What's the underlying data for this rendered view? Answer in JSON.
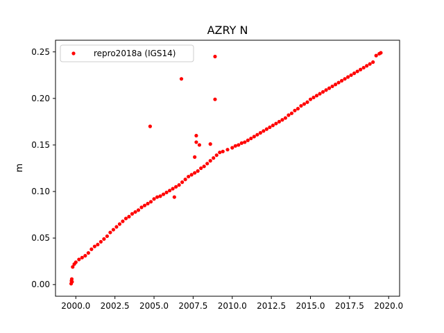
{
  "chart_data": {
    "type": "scatter",
    "title": "AZRY N",
    "xlabel": "",
    "ylabel": "m",
    "xlim": [
      1998.7,
      2020.7
    ],
    "ylim": [
      -0.0125,
      0.2625
    ],
    "xticks": [
      2000.0,
      2002.5,
      2005.0,
      2007.5,
      2010.0,
      2012.5,
      2015.0,
      2017.5,
      2020.0
    ],
    "xtick_labels": [
      "2000.0",
      "2002.5",
      "2005.0",
      "2007.5",
      "2010.0",
      "2012.5",
      "2015.0",
      "2017.5",
      "2020.0"
    ],
    "yticks": [
      0.0,
      0.05,
      0.1,
      0.15,
      0.2,
      0.25
    ],
    "ytick_labels": [
      "0.00",
      "0.05",
      "0.10",
      "0.15",
      "0.20",
      "0.25"
    ],
    "grid": false,
    "legend_position": "upper-left",
    "series": [
      {
        "name": "repro2018a (IGS14)",
        "color": "#ff0000",
        "marker": "circle",
        "points": [
          [
            1999.7,
            0.001
          ],
          [
            1999.72,
            0.004
          ],
          [
            1999.74,
            0.006
          ],
          [
            1999.76,
            0.003
          ],
          [
            1999.8,
            0.019
          ],
          [
            1999.9,
            0.022
          ],
          [
            2000.0,
            0.024
          ],
          [
            2000.2,
            0.027
          ],
          [
            2000.4,
            0.029
          ],
          [
            2000.6,
            0.031
          ],
          [
            2000.8,
            0.034
          ],
          [
            2001.0,
            0.038
          ],
          [
            2001.2,
            0.041
          ],
          [
            2001.4,
            0.043
          ],
          [
            2001.6,
            0.046
          ],
          [
            2001.8,
            0.049
          ],
          [
            2002.0,
            0.052
          ],
          [
            2002.2,
            0.056
          ],
          [
            2002.4,
            0.059
          ],
          [
            2002.6,
            0.062
          ],
          [
            2002.8,
            0.065
          ],
          [
            2003.0,
            0.068
          ],
          [
            2003.2,
            0.071
          ],
          [
            2003.4,
            0.073
          ],
          [
            2003.6,
            0.076
          ],
          [
            2003.8,
            0.078
          ],
          [
            2004.0,
            0.08
          ],
          [
            2004.2,
            0.083
          ],
          [
            2004.4,
            0.085
          ],
          [
            2004.6,
            0.087
          ],
          [
            2004.8,
            0.089
          ],
          [
            2005.0,
            0.092
          ],
          [
            2005.2,
            0.094
          ],
          [
            2005.4,
            0.095
          ],
          [
            2005.6,
            0.097
          ],
          [
            2005.8,
            0.099
          ],
          [
            2006.0,
            0.101
          ],
          [
            2006.2,
            0.103
          ],
          [
            2006.4,
            0.105
          ],
          [
            2006.6,
            0.107
          ],
          [
            2006.8,
            0.11
          ],
          [
            2007.0,
            0.113
          ],
          [
            2007.2,
            0.116
          ],
          [
            2007.4,
            0.118
          ],
          [
            2007.6,
            0.12
          ],
          [
            2007.8,
            0.122
          ],
          [
            2008.0,
            0.125
          ],
          [
            2008.2,
            0.127
          ],
          [
            2008.4,
            0.13
          ],
          [
            2008.6,
            0.133
          ],
          [
            2008.8,
            0.136
          ],
          [
            2009.0,
            0.139
          ],
          [
            2009.2,
            0.142
          ],
          [
            2009.4,
            0.143
          ],
          [
            2009.7,
            0.145
          ],
          [
            2010.0,
            0.147
          ],
          [
            2010.2,
            0.149
          ],
          [
            2010.4,
            0.15
          ],
          [
            2010.6,
            0.152
          ],
          [
            2010.8,
            0.153
          ],
          [
            2011.0,
            0.155
          ],
          [
            2011.2,
            0.157
          ],
          [
            2011.4,
            0.159
          ],
          [
            2011.6,
            0.161
          ],
          [
            2011.8,
            0.163
          ],
          [
            2012.0,
            0.165
          ],
          [
            2012.2,
            0.167
          ],
          [
            2012.4,
            0.169
          ],
          [
            2012.6,
            0.171
          ],
          [
            2012.8,
            0.173
          ],
          [
            2013.0,
            0.175
          ],
          [
            2013.2,
            0.177
          ],
          [
            2013.4,
            0.179
          ],
          [
            2013.6,
            0.182
          ],
          [
            2013.8,
            0.184
          ],
          [
            2014.0,
            0.187
          ],
          [
            2014.2,
            0.189
          ],
          [
            2014.4,
            0.192
          ],
          [
            2014.6,
            0.194
          ],
          [
            2014.8,
            0.196
          ],
          [
            2015.0,
            0.199
          ],
          [
            2015.2,
            0.201
          ],
          [
            2015.4,
            0.203
          ],
          [
            2015.6,
            0.205
          ],
          [
            2015.8,
            0.207
          ],
          [
            2016.0,
            0.209
          ],
          [
            2016.2,
            0.211
          ],
          [
            2016.4,
            0.213
          ],
          [
            2016.6,
            0.215
          ],
          [
            2016.8,
            0.217
          ],
          [
            2017.0,
            0.219
          ],
          [
            2017.2,
            0.221
          ],
          [
            2017.4,
            0.223
          ],
          [
            2017.6,
            0.225
          ],
          [
            2017.8,
            0.227
          ],
          [
            2018.0,
            0.229
          ],
          [
            2018.2,
            0.231
          ],
          [
            2018.4,
            0.233
          ],
          [
            2018.6,
            0.235
          ],
          [
            2018.8,
            0.237
          ],
          [
            2019.0,
            0.239
          ],
          [
            2019.2,
            0.246
          ],
          [
            2019.4,
            0.248
          ],
          [
            2019.5,
            0.249
          ],
          [
            2004.75,
            0.17
          ],
          [
            2006.75,
            0.221
          ],
          [
            2007.7,
            0.16
          ],
          [
            2007.7,
            0.153
          ],
          [
            2007.9,
            0.15
          ],
          [
            2007.6,
            0.137
          ],
          [
            2008.6,
            0.151
          ],
          [
            2008.9,
            0.245
          ],
          [
            2008.9,
            0.199
          ],
          [
            2006.3,
            0.094
          ]
        ]
      }
    ]
  }
}
